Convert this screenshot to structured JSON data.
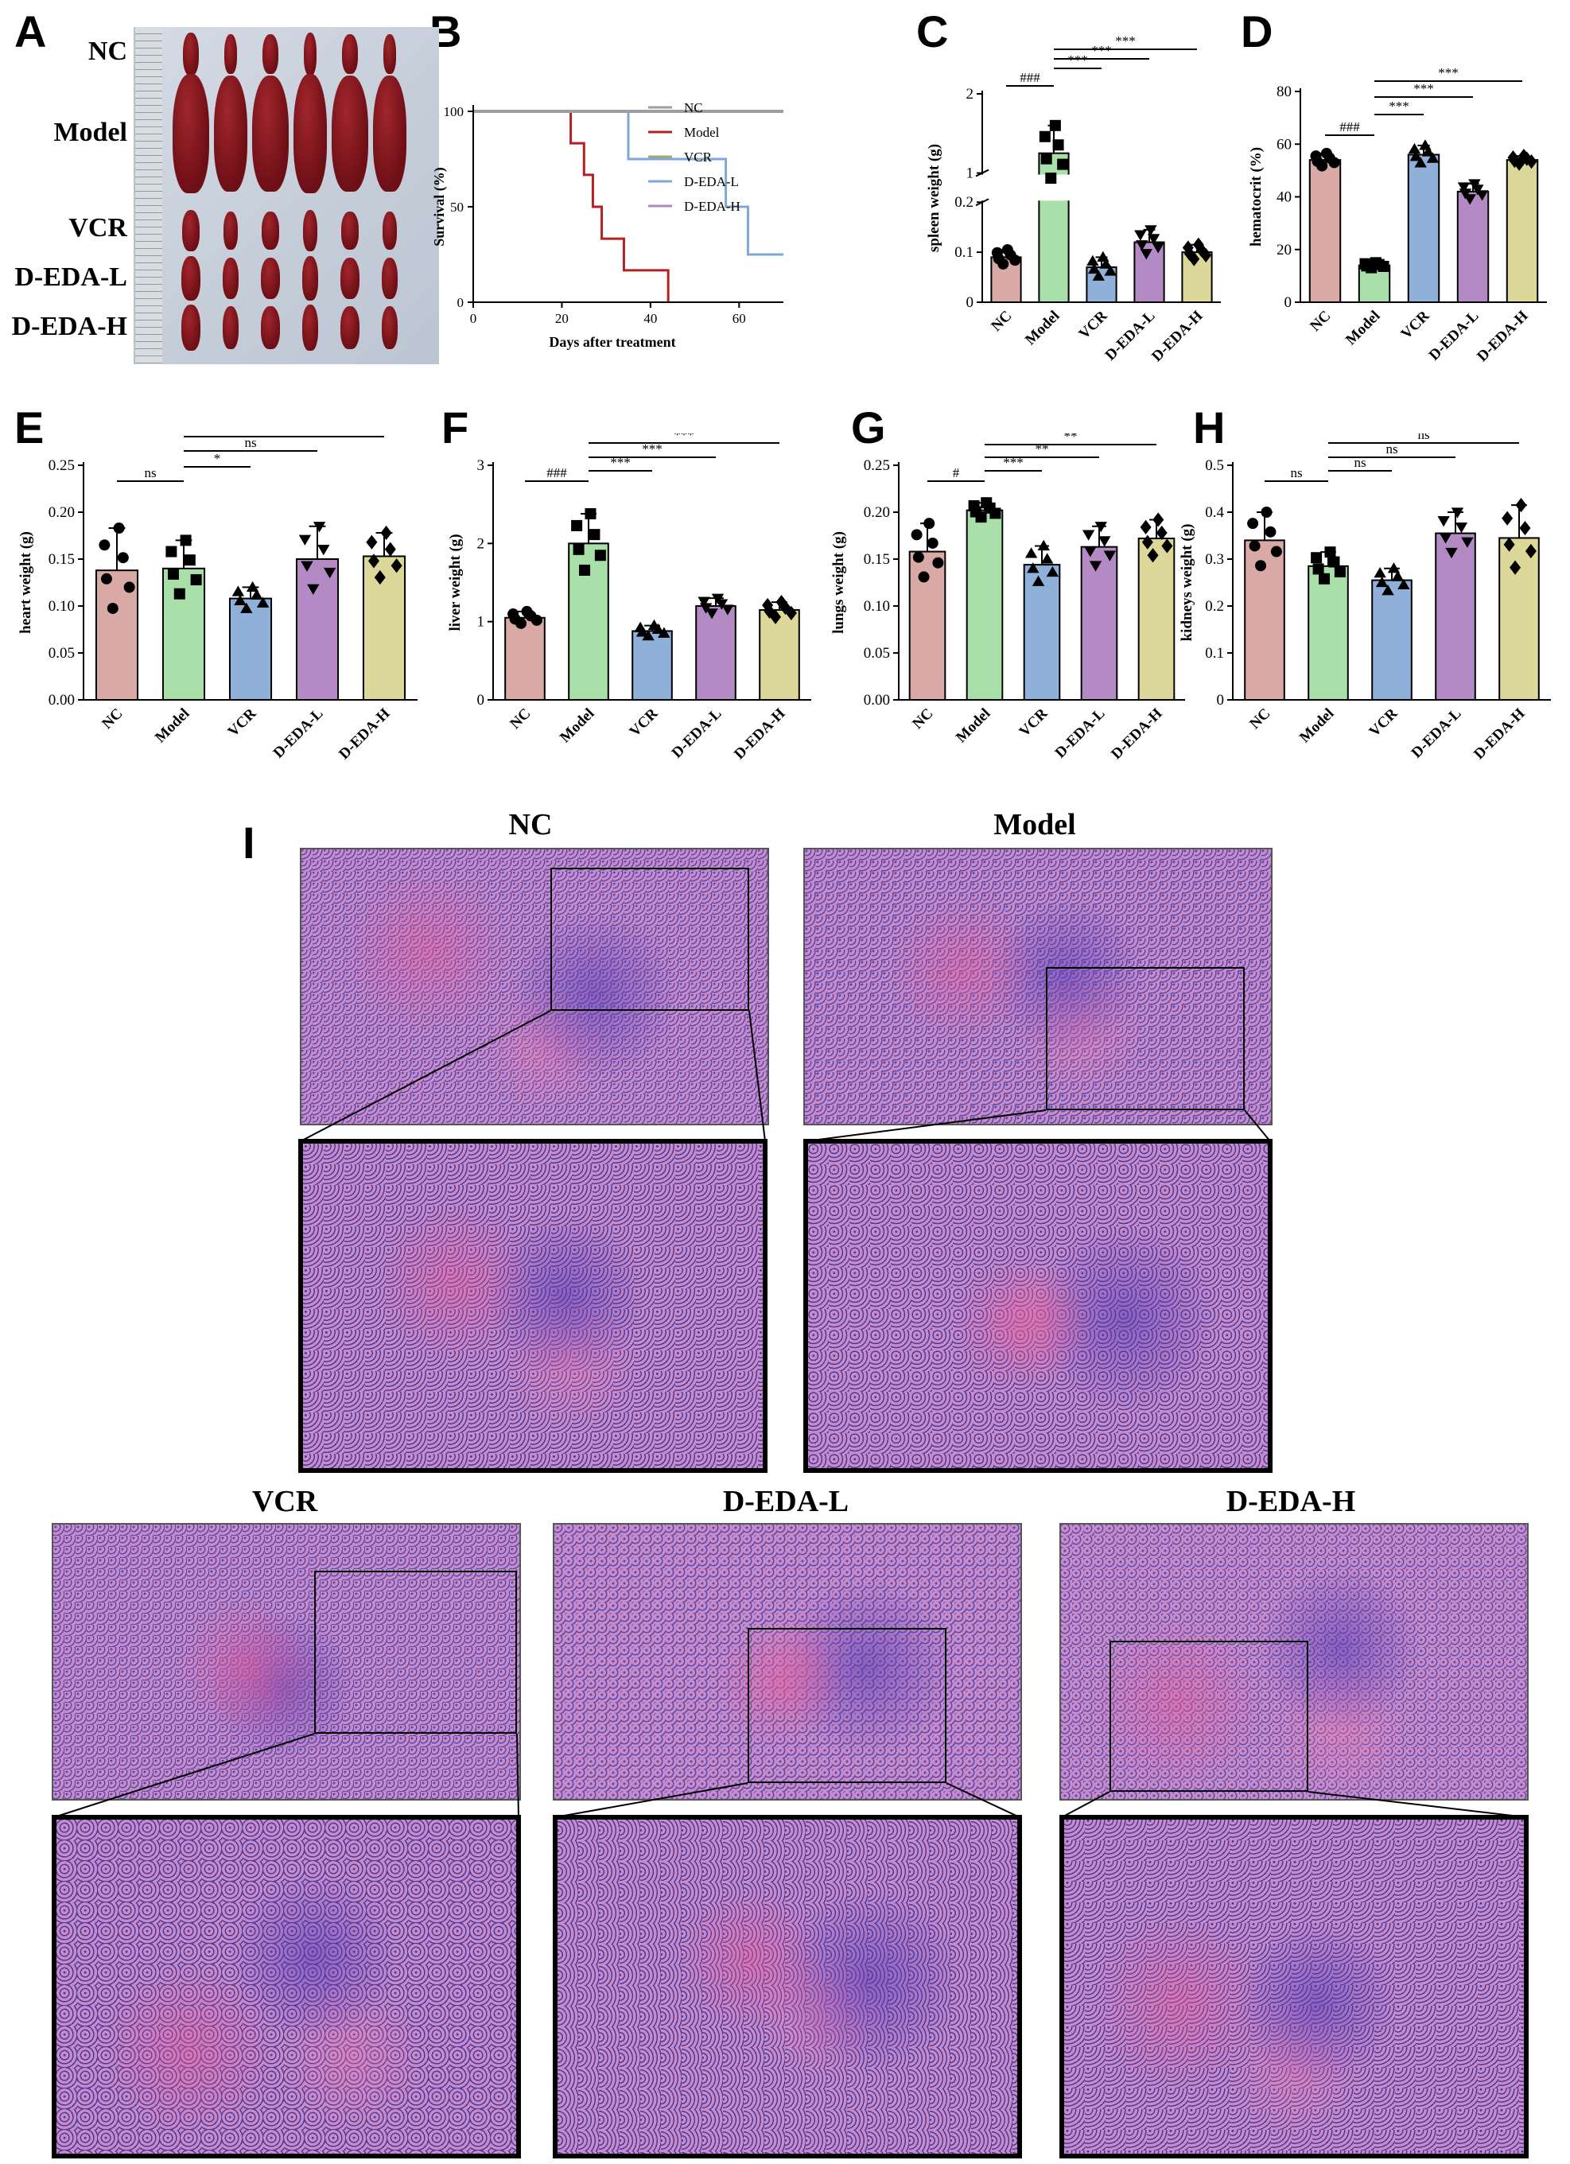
{
  "panels": {
    "A": {
      "letter": "A",
      "rows": [
        "NC",
        "Model",
        "VCR",
        "D-EDA-L",
        "D-EDA-H"
      ]
    },
    "B": {
      "letter": "B"
    },
    "C": {
      "letter": "C"
    },
    "D": {
      "letter": "D"
    },
    "E": {
      "letter": "E"
    },
    "F": {
      "letter": "F"
    },
    "G": {
      "letter": "G"
    },
    "H": {
      "letter": "H"
    },
    "I": {
      "letter": "I",
      "titles": [
        "NC",
        "Model",
        "VCR",
        "D-EDA-L",
        "D-EDA-H"
      ]
    }
  },
  "chart_data": [
    {
      "id": "B",
      "type": "line",
      "xlabel": "Days after treatment",
      "ylabel": "Survival (%)",
      "xlim": [
        0,
        70
      ],
      "ylim": [
        0,
        100
      ],
      "xticks": [
        0,
        20,
        40,
        60
      ],
      "yticks": [
        0,
        50,
        100
      ],
      "legend": "right",
      "series": [
        {
          "name": "NC",
          "color": "#9e9e9e",
          "x": [
            0,
            70
          ],
          "y": [
            100,
            100
          ]
        },
        {
          "name": "Model",
          "color": "#b22222",
          "x": [
            0,
            22,
            22,
            25,
            25,
            27,
            27,
            29,
            29,
            34,
            34,
            44,
            44
          ],
          "y": [
            100,
            100,
            83.3,
            83.3,
            66.7,
            66.7,
            50,
            50,
            33.3,
            33.3,
            16.7,
            16.7,
            0
          ]
        },
        {
          "name": "VCR",
          "color": "#a8a86b",
          "x": [
            0,
            70
          ],
          "y": [
            100,
            100
          ]
        },
        {
          "name": "D-EDA-L",
          "color": "#7fa8d6",
          "x": [
            0,
            35,
            35,
            57,
            57,
            62,
            62,
            70
          ],
          "y": [
            100,
            100,
            75,
            75,
            50,
            50,
            25,
            25
          ]
        },
        {
          "name": "D-EDA-H",
          "color": "#b184c2",
          "x": [
            0,
            70
          ],
          "y": [
            100,
            100
          ]
        }
      ]
    },
    {
      "id": "C",
      "type": "bar",
      "ylabel": "spleen weight (g)",
      "categories": [
        "NC",
        "Model",
        "VCR",
        "D-EDA-L",
        "D-EDA-H"
      ],
      "values": [
        0.09,
        1.25,
        0.07,
        0.12,
        0.1
      ],
      "errors": [
        0.015,
        0.35,
        0.02,
        0.025,
        0.015
      ],
      "axis_break": true,
      "yticks": [
        0.0,
        0.1,
        0.2,
        1,
        2
      ],
      "ylim": [
        0,
        2
      ],
      "sig": [
        {
          "from": 0,
          "to": 1,
          "label": "###"
        },
        {
          "from": 1,
          "to": 2,
          "label": "***"
        },
        {
          "from": 1,
          "to": 3,
          "label": "***"
        },
        {
          "from": 1,
          "to": 4,
          "label": "***"
        }
      ]
    },
    {
      "id": "D",
      "type": "bar",
      "ylabel": "hematocrit (%)",
      "categories": [
        "NC",
        "Model",
        "VCR",
        "D-EDA-L",
        "D-EDA-H"
      ],
      "values": [
        54,
        14,
        56,
        42,
        54
      ],
      "errors": [
        2.5,
        1.0,
        3.5,
        3.0,
        1.5
      ],
      "ylim": [
        0,
        80
      ],
      "yticks": [
        0,
        20,
        40,
        60,
        80
      ],
      "sig": [
        {
          "from": 0,
          "to": 1,
          "label": "###"
        },
        {
          "from": 1,
          "to": 2,
          "label": "***"
        },
        {
          "from": 1,
          "to": 3,
          "label": "***"
        },
        {
          "from": 1,
          "to": 4,
          "label": "***"
        }
      ]
    },
    {
      "id": "E",
      "type": "bar",
      "ylabel": "heart weight (g)",
      "categories": [
        "NC",
        "Model",
        "VCR",
        "D-EDA-L",
        "D-EDA-H"
      ],
      "values": [
        0.138,
        0.14,
        0.108,
        0.15,
        0.153
      ],
      "errors": [
        0.045,
        0.03,
        0.012,
        0.035,
        0.025
      ],
      "ylim": [
        0,
        0.25
      ],
      "yticks": [
        0.0,
        0.05,
        0.1,
        0.15,
        0.2,
        0.25
      ],
      "yticklabels": [
        "0.00",
        "0.05",
        "0.10",
        "0.15",
        "0.20",
        "0.25"
      ],
      "sig": [
        {
          "from": 0,
          "to": 1,
          "label": "ns"
        },
        {
          "from": 1,
          "to": 2,
          "label": "*"
        },
        {
          "from": 1,
          "to": 3,
          "label": "ns"
        },
        {
          "from": 1,
          "to": 4,
          "label": "ns"
        }
      ]
    },
    {
      "id": "F",
      "type": "bar",
      "ylabel": "liver weight (g)",
      "categories": [
        "NC",
        "Model",
        "VCR",
        "D-EDA-L",
        "D-EDA-H"
      ],
      "values": [
        1.05,
        2.0,
        0.88,
        1.2,
        1.15
      ],
      "errors": [
        0.08,
        0.38,
        0.07,
        0.1,
        0.1
      ],
      "ylim": [
        0,
        3
      ],
      "yticks": [
        0,
        1,
        2,
        3
      ],
      "sig": [
        {
          "from": 0,
          "to": 1,
          "label": "###"
        },
        {
          "from": 1,
          "to": 2,
          "label": "***"
        },
        {
          "from": 1,
          "to": 3,
          "label": "***"
        },
        {
          "from": 1,
          "to": 4,
          "label": "***"
        }
      ]
    },
    {
      "id": "G",
      "type": "bar",
      "ylabel": "lungs weight (g)",
      "categories": [
        "NC",
        "Model",
        "VCR",
        "D-EDA-L",
        "D-EDA-H"
      ],
      "values": [
        0.158,
        0.202,
        0.144,
        0.163,
        0.172
      ],
      "errors": [
        0.03,
        0.008,
        0.02,
        0.022,
        0.02
      ],
      "ylim": [
        0,
        0.25
      ],
      "yticks": [
        0.0,
        0.05,
        0.1,
        0.15,
        0.2,
        0.25
      ],
      "yticklabels": [
        "0.00",
        "0.05",
        "0.10",
        "0.15",
        "0.20",
        "0.25"
      ],
      "sig": [
        {
          "from": 0,
          "to": 1,
          "label": "#"
        },
        {
          "from": 1,
          "to": 2,
          "label": "***"
        },
        {
          "from": 1,
          "to": 3,
          "label": "**"
        },
        {
          "from": 1,
          "to": 4,
          "label": "**"
        }
      ]
    },
    {
      "id": "H",
      "type": "bar",
      "ylabel": "kidneys weight (g)",
      "categories": [
        "NC",
        "Model",
        "VCR",
        "D-EDA-L",
        "D-EDA-H"
      ],
      "values": [
        0.34,
        0.285,
        0.255,
        0.355,
        0.345
      ],
      "errors": [
        0.06,
        0.03,
        0.025,
        0.045,
        0.07
      ],
      "ylim": [
        0,
        0.5
      ],
      "yticks": [
        0.0,
        0.1,
        0.2,
        0.3,
        0.4,
        0.5
      ],
      "sig": [
        {
          "from": 0,
          "to": 1,
          "label": "ns"
        },
        {
          "from": 1,
          "to": 2,
          "label": "ns"
        },
        {
          "from": 1,
          "to": 3,
          "label": "ns"
        },
        {
          "from": 1,
          "to": 4,
          "label": "ns"
        }
      ]
    }
  ]
}
